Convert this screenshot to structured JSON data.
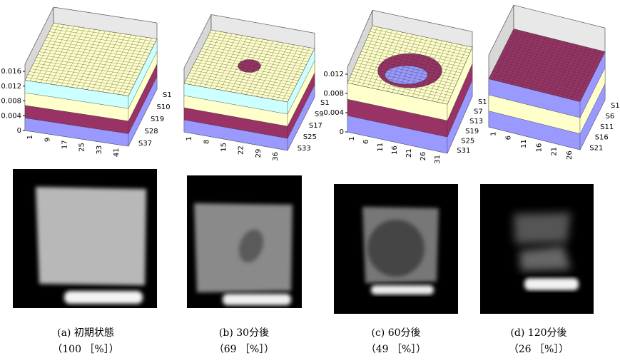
{
  "panels": [
    {
      "z_ticks": [
        "0",
        "0.004",
        "0.008",
        "0.012",
        "0.016"
      ],
      "x_ticks": [
        "1",
        "9",
        "17",
        "25",
        "33",
        "41"
      ],
      "series_ticks": [
        "S1",
        "S10",
        "S19",
        "S28",
        "S37"
      ],
      "caption": "(a) 初期状態",
      "result": "（100 ［%］）"
    },
    {
      "x_ticks": [
        "1",
        "8",
        "15",
        "22",
        "29",
        "36"
      ],
      "series_ticks": [
        "S1",
        "S9",
        "S17",
        "S25",
        "S33"
      ],
      "caption": "(b) 30分後",
      "result": "（69 ［%］）"
    },
    {
      "z_ticks": [
        "0",
        "0.004",
        "0.008",
        "0.012"
      ],
      "x_ticks": [
        "1",
        "6",
        "11",
        "16",
        "21",
        "26",
        "31"
      ],
      "series_ticks": [
        "S1",
        "S7",
        "S13",
        "S19",
        "S25",
        "S31"
      ],
      "caption": "(c) 60分後",
      "result": "（49 ［%］）"
    },
    {
      "x_ticks": [
        "1",
        "6",
        "11",
        "16",
        "21",
        "26"
      ],
      "series_ticks": [
        "S1",
        "S6",
        "S11",
        "S16",
        "S21"
      ],
      "caption": "(d) 120分後",
      "result": "（26 ［%］）"
    }
  ]
}
